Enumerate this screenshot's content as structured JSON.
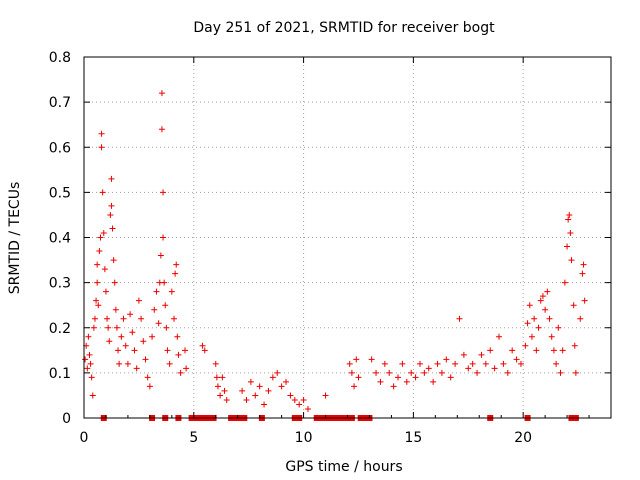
{
  "chart_data": {
    "type": "scatter",
    "title": "Day 251 of 2021, SRMTID for receiver bogt",
    "xlabel": "GPS time / hours",
    "ylabel": "SRMTID / TECUs",
    "xlim": [
      0,
      24
    ],
    "ylim": [
      0,
      0.8
    ],
    "x_ticks": [
      0,
      5,
      10,
      15,
      20
    ],
    "x_tick_labels": [
      "0",
      "5",
      "10",
      "15",
      "20"
    ],
    "y_ticks": [
      0,
      0.1,
      0.2,
      0.3,
      0.4,
      0.5,
      0.6,
      0.7,
      0.8
    ],
    "y_tick_labels": [
      "0",
      "0.1",
      "0.2",
      "0.3",
      "0.4",
      "0.5",
      "0.6",
      "0.7",
      "0.8"
    ],
    "grid": true,
    "marker": "plus",
    "color": "#ee0000",
    "zero_marker_x": [
      0.9,
      3.1,
      3.7,
      4.3,
      4.9,
      5.1,
      5.3,
      5.5,
      5.7,
      5.9,
      6.7,
      6.9,
      7.1,
      7.3,
      8.1,
      9.6,
      9.8,
      10.6,
      10.8,
      11.0,
      11.2,
      11.4,
      11.6,
      11.8,
      12.0,
      12.2,
      12.6,
      12.8,
      13.0,
      18.5,
      20.2,
      22.2,
      22.4
    ],
    "series": [
      {
        "name": "SRMTID",
        "points": [
          [
            0.05,
            0.13
          ],
          [
            0.1,
            0.16
          ],
          [
            0.15,
            0.11
          ],
          [
            0.2,
            0.18
          ],
          [
            0.25,
            0.14
          ],
          [
            0.3,
            0.12
          ],
          [
            0.35,
            0.09
          ],
          [
            0.4,
            0.05
          ],
          [
            0.45,
            0.2
          ],
          [
            0.5,
            0.22
          ],
          [
            0.55,
            0.26
          ],
          [
            0.6,
            0.3
          ],
          [
            0.6,
            0.34
          ],
          [
            0.65,
            0.25
          ],
          [
            0.7,
            0.37
          ],
          [
            0.75,
            0.4
          ],
          [
            0.8,
            0.6
          ],
          [
            0.8,
            0.63
          ],
          [
            0.85,
            0.5
          ],
          [
            0.9,
            0.41
          ],
          [
            0.95,
            0.33
          ],
          [
            1.0,
            0.28
          ],
          [
            1.05,
            0.22
          ],
          [
            1.1,
            0.2
          ],
          [
            1.15,
            0.17
          ],
          [
            1.2,
            0.45
          ],
          [
            1.25,
            0.53
          ],
          [
            1.25,
            0.47
          ],
          [
            1.3,
            0.42
          ],
          [
            1.35,
            0.35
          ],
          [
            1.4,
            0.3
          ],
          [
            1.45,
            0.24
          ],
          [
            1.5,
            0.2
          ],
          [
            1.55,
            0.15
          ],
          [
            1.6,
            0.12
          ],
          [
            1.7,
            0.18
          ],
          [
            1.8,
            0.22
          ],
          [
            1.9,
            0.16
          ],
          [
            2.0,
            0.12
          ],
          [
            2.1,
            0.23
          ],
          [
            2.2,
            0.19
          ],
          [
            2.3,
            0.15
          ],
          [
            2.4,
            0.11
          ],
          [
            2.5,
            0.26
          ],
          [
            2.6,
            0.22
          ],
          [
            2.7,
            0.17
          ],
          [
            2.8,
            0.13
          ],
          [
            2.9,
            0.09
          ],
          [
            3.0,
            0.07
          ],
          [
            3.1,
            0.18
          ],
          [
            3.2,
            0.24
          ],
          [
            3.3,
            0.28
          ],
          [
            3.4,
            0.21
          ],
          [
            3.45,
            0.3
          ],
          [
            3.5,
            0.36
          ],
          [
            3.55,
            0.72
          ],
          [
            3.55,
            0.64
          ],
          [
            3.6,
            0.5
          ],
          [
            3.6,
            0.4
          ],
          [
            3.65,
            0.3
          ],
          [
            3.7,
            0.25
          ],
          [
            3.75,
            0.2
          ],
          [
            3.8,
            0.15
          ],
          [
            3.9,
            0.12
          ],
          [
            4.0,
            0.28
          ],
          [
            4.1,
            0.22
          ],
          [
            4.15,
            0.32
          ],
          [
            4.2,
            0.34
          ],
          [
            4.25,
            0.18
          ],
          [
            4.3,
            0.14
          ],
          [
            4.4,
            0.1
          ],
          [
            4.6,
            0.15
          ],
          [
            4.65,
            0.11
          ],
          [
            5.4,
            0.16
          ],
          [
            5.5,
            0.15
          ],
          [
            6.0,
            0.12
          ],
          [
            6.05,
            0.09
          ],
          [
            6.1,
            0.07
          ],
          [
            6.2,
            0.05
          ],
          [
            6.3,
            0.09
          ],
          [
            6.4,
            0.06
          ],
          [
            6.5,
            0.04
          ],
          [
            7.2,
            0.06
          ],
          [
            7.4,
            0.04
          ],
          [
            7.6,
            0.08
          ],
          [
            7.8,
            0.05
          ],
          [
            8.0,
            0.07
          ],
          [
            8.2,
            0.03
          ],
          [
            8.4,
            0.06
          ],
          [
            8.6,
            0.09
          ],
          [
            8.8,
            0.1
          ],
          [
            9.0,
            0.07
          ],
          [
            9.2,
            0.08
          ],
          [
            9.4,
            0.05
          ],
          [
            9.6,
            0.04
          ],
          [
            9.8,
            0.03
          ],
          [
            10.0,
            0.04
          ],
          [
            10.2,
            0.02
          ],
          [
            11.0,
            0.05
          ],
          [
            12.1,
            0.12
          ],
          [
            12.2,
            0.1
          ],
          [
            12.3,
            0.07
          ],
          [
            12.4,
            0.13
          ],
          [
            12.5,
            0.09
          ],
          [
            13.1,
            0.13
          ],
          [
            13.3,
            0.1
          ],
          [
            13.5,
            0.08
          ],
          [
            13.7,
            0.12
          ],
          [
            13.9,
            0.1
          ],
          [
            14.1,
            0.07
          ],
          [
            14.3,
            0.09
          ],
          [
            14.5,
            0.12
          ],
          [
            14.7,
            0.08
          ],
          [
            14.9,
            0.1
          ],
          [
            15.1,
            0.09
          ],
          [
            15.3,
            0.12
          ],
          [
            15.5,
            0.1
          ],
          [
            15.7,
            0.11
          ],
          [
            15.9,
            0.08
          ],
          [
            16.1,
            0.12
          ],
          [
            16.3,
            0.1
          ],
          [
            16.5,
            0.13
          ],
          [
            16.7,
            0.09
          ],
          [
            16.9,
            0.12
          ],
          [
            17.1,
            0.22
          ],
          [
            17.3,
            0.14
          ],
          [
            17.5,
            0.11
          ],
          [
            17.7,
            0.12
          ],
          [
            17.9,
            0.1
          ],
          [
            18.1,
            0.14
          ],
          [
            18.3,
            0.12
          ],
          [
            18.5,
            0.15
          ],
          [
            18.7,
            0.11
          ],
          [
            18.9,
            0.18
          ],
          [
            19.1,
            0.12
          ],
          [
            19.3,
            0.1
          ],
          [
            19.5,
            0.15
          ],
          [
            19.7,
            0.13
          ],
          [
            19.9,
            0.12
          ],
          [
            20.1,
            0.16
          ],
          [
            20.2,
            0.21
          ],
          [
            20.3,
            0.25
          ],
          [
            20.4,
            0.18
          ],
          [
            20.5,
            0.22
          ],
          [
            20.6,
            0.15
          ],
          [
            20.7,
            0.2
          ],
          [
            20.8,
            0.26
          ],
          [
            20.9,
            0.27
          ],
          [
            21.0,
            0.24
          ],
          [
            21.1,
            0.28
          ],
          [
            21.2,
            0.22
          ],
          [
            21.3,
            0.18
          ],
          [
            21.4,
            0.15
          ],
          [
            21.5,
            0.12
          ],
          [
            21.6,
            0.2
          ],
          [
            21.7,
            0.1
          ],
          [
            21.8,
            0.15
          ],
          [
            21.9,
            0.3
          ],
          [
            22.0,
            0.38
          ],
          [
            22.05,
            0.44
          ],
          [
            22.1,
            0.45
          ],
          [
            22.15,
            0.41
          ],
          [
            22.2,
            0.35
          ],
          [
            22.3,
            0.25
          ],
          [
            22.35,
            0.16
          ],
          [
            22.4,
            0.1
          ],
          [
            22.6,
            0.22
          ],
          [
            22.7,
            0.32
          ],
          [
            22.75,
            0.34
          ],
          [
            22.8,
            0.26
          ]
        ]
      }
    ]
  }
}
